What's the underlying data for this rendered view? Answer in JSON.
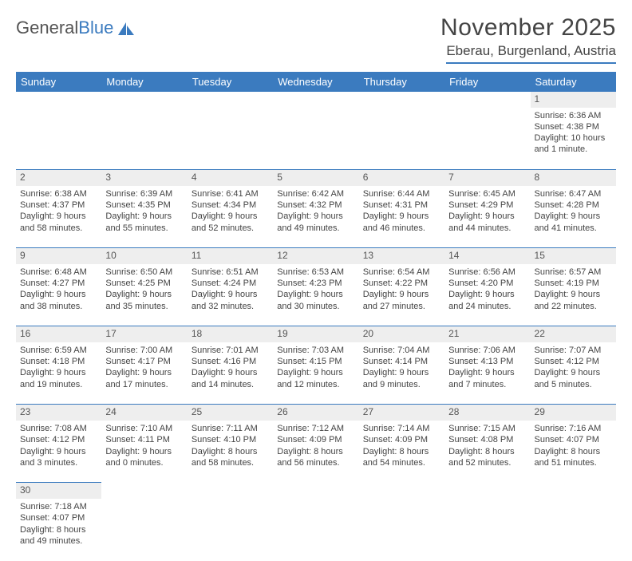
{
  "logo": {
    "text1": "General",
    "text2": "Blue"
  },
  "title": "November 2025",
  "subtitle": "Eberau, Burgenland, Austria",
  "headers": [
    "Sunday",
    "Monday",
    "Tuesday",
    "Wednesday",
    "Thursday",
    "Friday",
    "Saturday"
  ],
  "colors": {
    "header_bg": "#3b7bbf",
    "header_text": "#ffffff",
    "daynum_bg": "#eeeeee",
    "border": "#3b7bbf",
    "text": "#444444"
  },
  "weeks": [
    [
      null,
      null,
      null,
      null,
      null,
      null,
      {
        "n": "1",
        "sunrise": "6:36 AM",
        "sunset": "4:38 PM",
        "daylight": "10 hours and 1 minute."
      }
    ],
    [
      {
        "n": "2",
        "sunrise": "6:38 AM",
        "sunset": "4:37 PM",
        "daylight": "9 hours and 58 minutes."
      },
      {
        "n": "3",
        "sunrise": "6:39 AM",
        "sunset": "4:35 PM",
        "daylight": "9 hours and 55 minutes."
      },
      {
        "n": "4",
        "sunrise": "6:41 AM",
        "sunset": "4:34 PM",
        "daylight": "9 hours and 52 minutes."
      },
      {
        "n": "5",
        "sunrise": "6:42 AM",
        "sunset": "4:32 PM",
        "daylight": "9 hours and 49 minutes."
      },
      {
        "n": "6",
        "sunrise": "6:44 AM",
        "sunset": "4:31 PM",
        "daylight": "9 hours and 46 minutes."
      },
      {
        "n": "7",
        "sunrise": "6:45 AM",
        "sunset": "4:29 PM",
        "daylight": "9 hours and 44 minutes."
      },
      {
        "n": "8",
        "sunrise": "6:47 AM",
        "sunset": "4:28 PM",
        "daylight": "9 hours and 41 minutes."
      }
    ],
    [
      {
        "n": "9",
        "sunrise": "6:48 AM",
        "sunset": "4:27 PM",
        "daylight": "9 hours and 38 minutes."
      },
      {
        "n": "10",
        "sunrise": "6:50 AM",
        "sunset": "4:25 PM",
        "daylight": "9 hours and 35 minutes."
      },
      {
        "n": "11",
        "sunrise": "6:51 AM",
        "sunset": "4:24 PM",
        "daylight": "9 hours and 32 minutes."
      },
      {
        "n": "12",
        "sunrise": "6:53 AM",
        "sunset": "4:23 PM",
        "daylight": "9 hours and 30 minutes."
      },
      {
        "n": "13",
        "sunrise": "6:54 AM",
        "sunset": "4:22 PM",
        "daylight": "9 hours and 27 minutes."
      },
      {
        "n": "14",
        "sunrise": "6:56 AM",
        "sunset": "4:20 PM",
        "daylight": "9 hours and 24 minutes."
      },
      {
        "n": "15",
        "sunrise": "6:57 AM",
        "sunset": "4:19 PM",
        "daylight": "9 hours and 22 minutes."
      }
    ],
    [
      {
        "n": "16",
        "sunrise": "6:59 AM",
        "sunset": "4:18 PM",
        "daylight": "9 hours and 19 minutes."
      },
      {
        "n": "17",
        "sunrise": "7:00 AM",
        "sunset": "4:17 PM",
        "daylight": "9 hours and 17 minutes."
      },
      {
        "n": "18",
        "sunrise": "7:01 AM",
        "sunset": "4:16 PM",
        "daylight": "9 hours and 14 minutes."
      },
      {
        "n": "19",
        "sunrise": "7:03 AM",
        "sunset": "4:15 PM",
        "daylight": "9 hours and 12 minutes."
      },
      {
        "n": "20",
        "sunrise": "7:04 AM",
        "sunset": "4:14 PM",
        "daylight": "9 hours and 9 minutes."
      },
      {
        "n": "21",
        "sunrise": "7:06 AM",
        "sunset": "4:13 PM",
        "daylight": "9 hours and 7 minutes."
      },
      {
        "n": "22",
        "sunrise": "7:07 AM",
        "sunset": "4:12 PM",
        "daylight": "9 hours and 5 minutes."
      }
    ],
    [
      {
        "n": "23",
        "sunrise": "7:08 AM",
        "sunset": "4:12 PM",
        "daylight": "9 hours and 3 minutes."
      },
      {
        "n": "24",
        "sunrise": "7:10 AM",
        "sunset": "4:11 PM",
        "daylight": "9 hours and 0 minutes."
      },
      {
        "n": "25",
        "sunrise": "7:11 AM",
        "sunset": "4:10 PM",
        "daylight": "8 hours and 58 minutes."
      },
      {
        "n": "26",
        "sunrise": "7:12 AM",
        "sunset": "4:09 PM",
        "daylight": "8 hours and 56 minutes."
      },
      {
        "n": "27",
        "sunrise": "7:14 AM",
        "sunset": "4:09 PM",
        "daylight": "8 hours and 54 minutes."
      },
      {
        "n": "28",
        "sunrise": "7:15 AM",
        "sunset": "4:08 PM",
        "daylight": "8 hours and 52 minutes."
      },
      {
        "n": "29",
        "sunrise": "7:16 AM",
        "sunset": "4:07 PM",
        "daylight": "8 hours and 51 minutes."
      }
    ],
    [
      {
        "n": "30",
        "sunrise": "7:18 AM",
        "sunset": "4:07 PM",
        "daylight": "8 hours and 49 minutes."
      },
      null,
      null,
      null,
      null,
      null,
      null
    ]
  ]
}
